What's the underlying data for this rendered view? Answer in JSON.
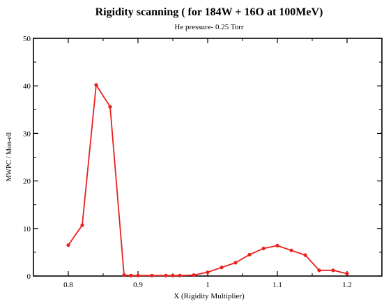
{
  "chart_data": {
    "type": "line",
    "title": "Rigidity scanning ( for 184W + 16O at 100MeV)",
    "subtitle": "He pressure- 0.25 Torr",
    "xlabel": "X (Rigidity Multiplier)",
    "ylabel": "MWPC / Mon-ell",
    "xlim": [
      0.75,
      1.25
    ],
    "ylim": [
      0,
      50
    ],
    "x_ticks": [
      0.8,
      0.9,
      1,
      1.1,
      1.2
    ],
    "x_tick_labels": [
      "0.8",
      "0.9",
      "1",
      "1.1",
      "1.2"
    ],
    "y_ticks": [
      0,
      10,
      20,
      30,
      40,
      50
    ],
    "y_tick_labels": [
      "0",
      "10",
      "20",
      "30",
      "40",
      "50"
    ],
    "grid": false,
    "series": [
      {
        "color": "#e8201c",
        "x": [
          0.8,
          0.82,
          0.84,
          0.86,
          0.88,
          0.89,
          0.9,
          0.92,
          0.94,
          0.95,
          0.96,
          0.98,
          1.0,
          1.02,
          1.04,
          1.06,
          1.08,
          1.1,
          1.12,
          1.14,
          1.16,
          1.18,
          1.2
        ],
        "y": [
          6.5,
          10.7,
          40.2,
          35.6,
          0.2,
          0.1,
          0.1,
          0.1,
          0.1,
          0.1,
          0.1,
          0.2,
          0.8,
          1.8,
          2.8,
          4.5,
          5.8,
          6.4,
          5.4,
          4.4,
          1.2,
          1.2,
          0.5
        ]
      }
    ]
  }
}
